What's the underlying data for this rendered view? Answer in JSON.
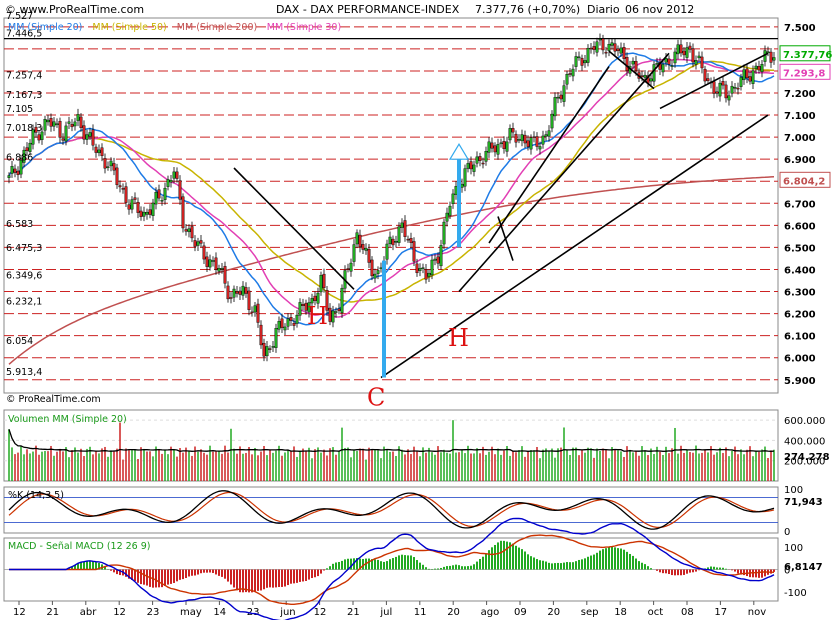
{
  "header": {
    "site": "© www.ProRealTime.com",
    "instrument": "DAX - DAX PERFORMANCE-INDEX",
    "last": "7.377,76 (+0,70%)",
    "period": "Diario",
    "date": "06 nov 2012"
  },
  "watermark": "© ProRealTime.com",
  "colors": {
    "up": "#22aa22",
    "down": "#cc2222",
    "sma20": "#1e7be6",
    "sma30": "#e23fb4",
    "sma50": "#c8b400",
    "sma200": "#c05050",
    "grid": "#cc2222",
    "arrow": "#33aaee",
    "annotation": "#dd1111",
    "macd": "#0000cc",
    "signal": "#cc3300",
    "stoch_k": "#000000",
    "stoch_d": "#cc3300"
  },
  "chart_data": [
    {
      "type": "candlestick",
      "title": "DAX - DAX PERFORMANCE-INDEX",
      "x_ticks": [
        "12",
        "21",
        "abr",
        "12",
        "23",
        "may",
        "14",
        "23",
        "jun",
        "12",
        "21",
        "jul",
        "11",
        "20",
        "ago",
        "09",
        "20",
        "sep",
        "18",
        "oct",
        "08",
        "17",
        "nov"
      ],
      "yticks": [
        5900,
        6000,
        6100,
        6200,
        6300,
        6400,
        6500,
        6600,
        6700,
        6800,
        6900,
        7000,
        7100,
        7200,
        7300,
        7400,
        7500
      ],
      "y_tick_labels": [
        "5.900",
        "6.000",
        "6.100",
        "6.200",
        "6.300",
        "6.400",
        "6.500",
        "6.600",
        "6.700",
        "6.800",
        "6.900",
        "7.000",
        "7.100",
        "7.200",
        "7.300",
        "7.400",
        "7.500"
      ],
      "ylim": [
        5840,
        7540
      ],
      "legend": [
        "MM (Simple 20)",
        "MM (Simple 50)",
        "MM (Simple 200)",
        "MM (Simple 30)"
      ],
      "level_labels": [
        {
          "value": 7527,
          "label": "7.527"
        },
        {
          "value": 7446.5,
          "label": "7.446,5"
        },
        {
          "value": 7257.4,
          "label": "7.257,4"
        },
        {
          "value": 7167.3,
          "label": "7.167,3"
        },
        {
          "value": 7105,
          "label": "7.105"
        },
        {
          "value": 7018.3,
          "label": "7.018,3"
        },
        {
          "value": 6886,
          "label": "6.886"
        },
        {
          "value": 6583,
          "label": "6.583"
        },
        {
          "value": 6475.3,
          "label": "6.475,3"
        },
        {
          "value": 6349.6,
          "label": "6.349,6"
        },
        {
          "value": 6232.1,
          "label": "6.232,1"
        },
        {
          "value": 6054,
          "label": "6.054"
        },
        {
          "value": 5913.4,
          "label": "5.913,4"
        }
      ],
      "price_tags": [
        {
          "label": "7.377,76",
          "value": 7377.76
        },
        {
          "label": "7.293,8",
          "value": 7293.8
        },
        {
          "label": "6.804,2",
          "value": 6804.2
        }
      ],
      "close_anchors": [
        [
          0,
          6810
        ],
        [
          3,
          6870
        ],
        [
          8,
          7000
        ],
        [
          13,
          7070
        ],
        [
          18,
          7020
        ],
        [
          23,
          7080
        ],
        [
          28,
          6960
        ],
        [
          33,
          6880
        ],
        [
          40,
          6700
        ],
        [
          45,
          6650
        ],
        [
          50,
          6720
        ],
        [
          55,
          6850
        ],
        [
          58,
          6620
        ],
        [
          62,
          6520
        ],
        [
          66,
          6450
        ],
        [
          70,
          6400
        ],
        [
          74,
          6280
        ],
        [
          78,
          6300
        ],
        [
          82,
          6210
        ],
        [
          85,
          6000
        ],
        [
          89,
          6120
        ],
        [
          93,
          6160
        ],
        [
          97,
          6210
        ],
        [
          101,
          6260
        ],
        [
          104,
          6340
        ],
        [
          107,
          6180
        ],
        [
          110,
          6240
        ],
        [
          113,
          6410
        ],
        [
          116,
          6560
        ],
        [
          120,
          6420
        ],
        [
          123,
          6380
        ],
        [
          127,
          6520
        ],
        [
          131,
          6600
        ],
        [
          135,
          6450
        ],
        [
          139,
          6360
        ],
        [
          143,
          6470
        ],
        [
          147,
          6700
        ],
        [
          151,
          6820
        ],
        [
          155,
          6880
        ],
        [
          159,
          6930
        ],
        [
          163,
          6960
        ],
        [
          167,
          7000
        ],
        [
          171,
          7000
        ],
        [
          175,
          6960
        ],
        [
          179,
          7010
        ],
        [
          183,
          7180
        ],
        [
          187,
          7300
        ],
        [
          191,
          7360
        ],
        [
          195,
          7410
        ],
        [
          199,
          7420
        ],
        [
          203,
          7390
        ],
        [
          207,
          7330
        ],
        [
          211,
          7260
        ],
        [
          215,
          7300
        ],
        [
          219,
          7340
        ],
        [
          223,
          7380
        ],
        [
          227,
          7400
        ],
        [
          231,
          7300
        ],
        [
          235,
          7220
        ],
        [
          239,
          7200
        ],
        [
          243,
          7240
        ],
        [
          247,
          7290
        ],
        [
          251,
          7330
        ],
        [
          253,
          7378
        ]
      ],
      "trendlines": [
        {
          "from": [
            75,
            6860
          ],
          "to": [
            115,
            6310
          ]
        },
        {
          "from": [
            124,
            5910
          ],
          "to": [
            253,
            7100
          ]
        },
        {
          "from": [
            150,
            6300
          ],
          "to": [
            220,
            7380
          ]
        },
        {
          "from": [
            160,
            6520
          ],
          "to": [
            200,
            7320
          ]
        },
        {
          "from": [
            200,
            7390
          ],
          "to": [
            215,
            7220
          ]
        },
        {
          "from": [
            217,
            7130
          ],
          "to": [
            253,
            7380
          ]
        },
        {
          "from": [
            163,
            6640
          ],
          "to": [
            168,
            6440
          ]
        }
      ],
      "annotations": [
        {
          "label": "H",
          "at": [
            102,
            6190
          ]
        },
        {
          "label": "C",
          "at": [
            122,
            5820
          ]
        },
        {
          "label": "H",
          "at": [
            149,
            6090
          ]
        }
      ],
      "arrows": [
        {
          "x": 125,
          "from": 5910,
          "to": 6440,
          "head": false
        },
        {
          "x": 150,
          "from": 6500,
          "to": 6900,
          "head": true
        }
      ],
      "horizontal_line": 7446.5
    },
    {
      "type": "bar",
      "title": "Volumen MM (Simple 20)",
      "yticks": [
        200000,
        400000,
        600000
      ],
      "y_tick_labels": [
        "200.000",
        "400.000",
        "600.000"
      ],
      "ylim": [
        0,
        700000
      ],
      "last_value_label": "274.278"
    },
    {
      "type": "line",
      "title": "%K (14,3,5)",
      "yticks": [
        0,
        100
      ],
      "ylim": [
        -5,
        105
      ],
      "last_value_label": "71,943"
    },
    {
      "type": "line",
      "title": "MACD - Señal MACD (12 26 9)",
      "legend": [
        "MACD",
        "Señal MACD (12 26 9)"
      ],
      "yticks": [
        100,
        0,
        -100
      ],
      "y_tick_labels": [
        "100",
        "0",
        "-100"
      ],
      "ylim": [
        -140,
        140
      ],
      "last_value_label": "6,8147"
    }
  ]
}
